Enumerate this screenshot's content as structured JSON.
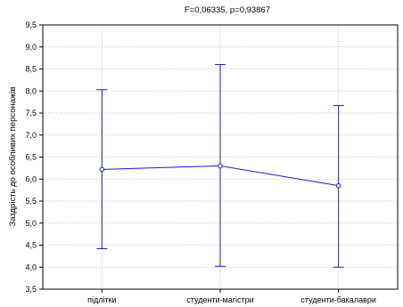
{
  "chart_data": {
    "type": "line",
    "title": "F=0,06335, p=0,93867",
    "ylabel": "Заздрість до особливих персонажів",
    "xlabel": "",
    "categories": [
      "підлітки",
      "студенти-магістри",
      "студенти-бакалаври"
    ],
    "series": [
      {
        "mean": [
          6.22,
          6.3,
          5.85
        ],
        "lower": [
          4.42,
          4.02,
          4.0
        ],
        "upper": [
          8.03,
          8.6,
          7.67
        ]
      }
    ],
    "ylim": [
      3.5,
      9.5
    ],
    "yticks": [
      "3,5",
      "4,0",
      "4,5",
      "5,0",
      "5,5",
      "6,0",
      "6,5",
      "7,0",
      "7,5",
      "8,0",
      "8,5",
      "9,0",
      "9,5"
    ],
    "grid": true,
    "colors": {
      "series": "#1a1acc",
      "axis": "#000000",
      "grid": "#b0b0b0"
    }
  }
}
